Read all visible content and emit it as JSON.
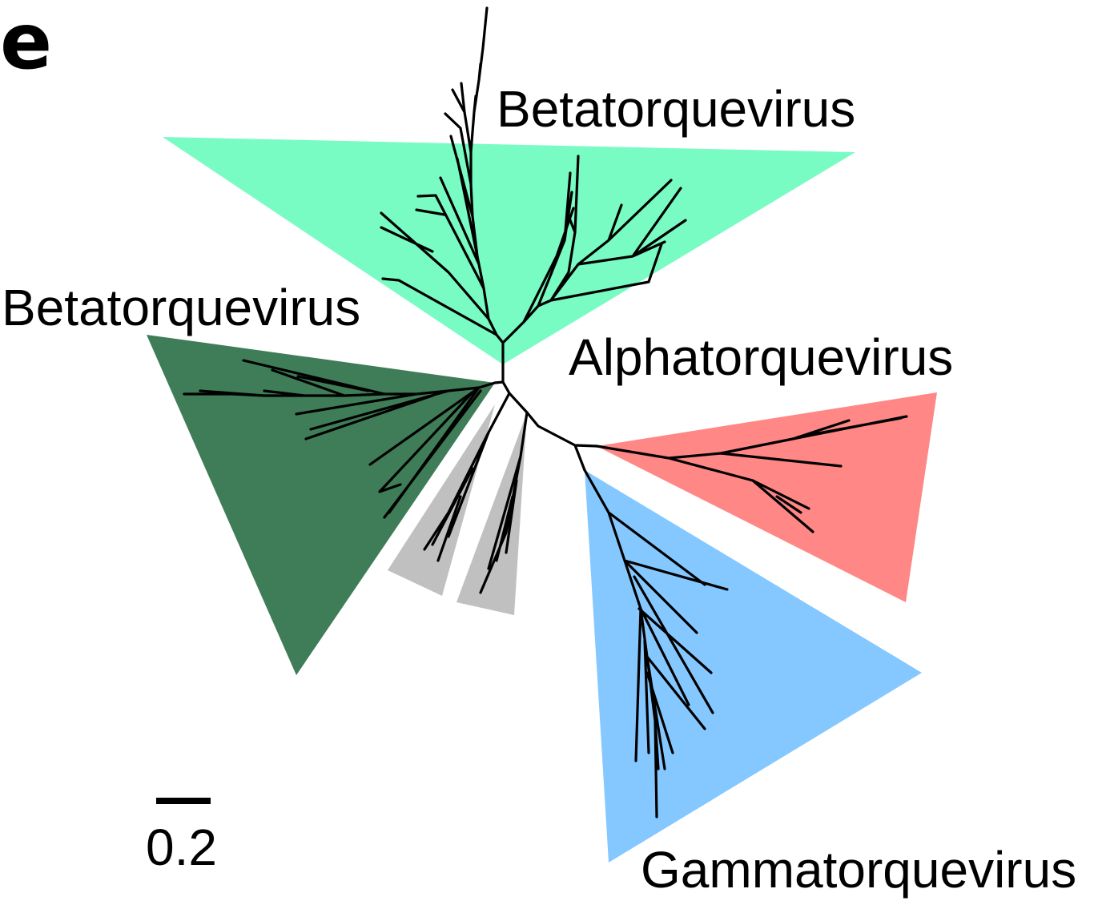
{
  "panel_letter": "e",
  "clades": [
    {
      "label": "Betatorquevirus",
      "color": "#78fcc3"
    },
    {
      "label": "Betatorquevirus",
      "color": "#3e7d57"
    },
    {
      "label": "Alphatorquevirus",
      "color": "#ff8785"
    },
    {
      "label": "Gammatorquevirus",
      "color": "#85c8ff"
    },
    {
      "label": "",
      "color": "#c0c0c0"
    },
    {
      "label": "",
      "color": "#c0c0c0"
    }
  ],
  "scale_bar": {
    "value": "0.2"
  }
}
